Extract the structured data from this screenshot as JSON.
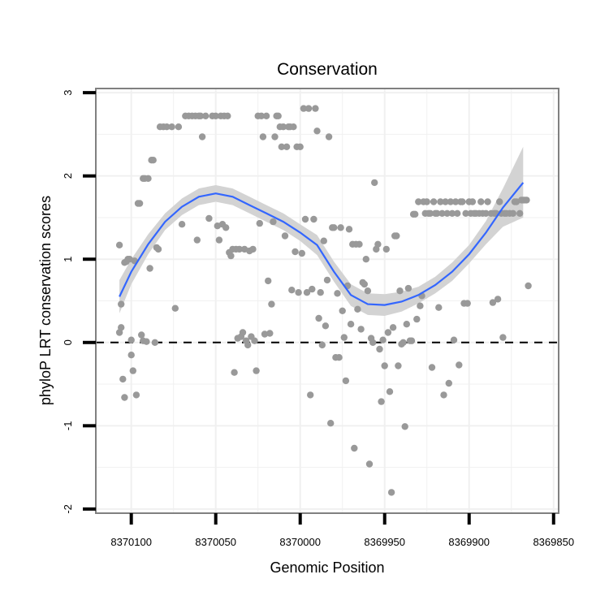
{
  "chart_data": {
    "type": "scatter",
    "title": "Conservation",
    "xlabel": "Genomic Position",
    "ylabel": "phyloP LRT conservation scores",
    "x_reversed": true,
    "xlim": [
      8370121,
      8369847
    ],
    "ylim": [
      -2.05,
      3.05
    ],
    "x_ticks": [
      8370100,
      8370050,
      8370000,
      8369950,
      8369900,
      8369850
    ],
    "x_tick_labels": [
      "8370100",
      "8370050",
      "8370000",
      "8369950",
      "8369900",
      "8369850"
    ],
    "y_ticks": [
      -2,
      -1,
      0,
      1,
      2,
      3
    ],
    "y_tick_labels": [
      "-2",
      "-1",
      "0",
      "1",
      "2",
      "3"
    ],
    "reference_line": {
      "y": 0,
      "style": "dashed"
    },
    "point_color": "#999999",
    "line_color": "#3366ff",
    "band_color": "#d3d3d3",
    "axis_color": "#808080",
    "grid_color": "#f0f0f0",
    "points": [
      [
        8370107,
        1.17
      ],
      [
        8370106,
        0.46
      ],
      [
        8370107,
        0.12
      ],
      [
        8370106,
        0.18
      ],
      [
        8370105,
        -0.44
      ],
      [
        8370104,
        0.96
      ],
      [
        8370103,
        0.97
      ],
      [
        8370104,
        -0.66
      ],
      [
        8370102,
        1.0
      ],
      [
        8370101,
        1.0
      ],
      [
        8370100,
        0.03
      ],
      [
        8370100,
        -0.15
      ],
      [
        8370099,
        -0.34
      ],
      [
        8370098,
        0.98
      ],
      [
        8370097,
        -0.63
      ],
      [
        8370096,
        1.67
      ],
      [
        8370095,
        1.67
      ],
      [
        8370094,
        0.09
      ],
      [
        8370093,
        0.02
      ],
      [
        8370093,
        1.97
      ],
      [
        8370092,
        1.97
      ],
      [
        8370091,
        0.01
      ],
      [
        8370090,
        1.97
      ],
      [
        8370089,
        0.89
      ],
      [
        8370088,
        2.19
      ],
      [
        8370087,
        2.19
      ],
      [
        8370086,
        0.0
      ],
      [
        8370085,
        1.14
      ],
      [
        8370084,
        1.12
      ],
      [
        8370083,
        2.59
      ],
      [
        8370081,
        2.59
      ],
      [
        8370079,
        2.59
      ],
      [
        8370076,
        2.59
      ],
      [
        8370074,
        0.41
      ],
      [
        8370072,
        2.59
      ],
      [
        8370070,
        1.42
      ],
      [
        8370068,
        2.72
      ],
      [
        8370066,
        2.72
      ],
      [
        8370064,
        2.72
      ],
      [
        8370062,
        2.72
      ],
      [
        8370061,
        1.23
      ],
      [
        8370060,
        2.72
      ],
      [
        8370059,
        2.72
      ],
      [
        8370058,
        2.47
      ],
      [
        8370056,
        2.72
      ],
      [
        8370054,
        1.49
      ],
      [
        8370052,
        2.72
      ],
      [
        8370050,
        2.72
      ],
      [
        8370049,
        1.4
      ],
      [
        8370048,
        1.23
      ],
      [
        8370047,
        2.72
      ],
      [
        8370046,
        1.42
      ],
      [
        8370045,
        2.72
      ],
      [
        8370044,
        1.38
      ],
      [
        8370043,
        2.72
      ],
      [
        8370042,
        1.08
      ],
      [
        8370041,
        1.04
      ],
      [
        8370040,
        1.12
      ],
      [
        8370039,
        -0.36
      ],
      [
        8370038,
        1.12
      ],
      [
        8370037,
        0.05
      ],
      [
        8370036,
        1.12
      ],
      [
        8370035,
        0.07
      ],
      [
        8370034,
        0.12
      ],
      [
        8370033,
        1.12
      ],
      [
        8370032,
        0.02
      ],
      [
        8370031,
        -0.03
      ],
      [
        8370030,
        1.1
      ],
      [
        8370029,
        0.07
      ],
      [
        8370028,
        1.12
      ],
      [
        8370027,
        0.02
      ],
      [
        8370026,
        -0.34
      ],
      [
        8370025,
        2.72
      ],
      [
        8370024,
        1.43
      ],
      [
        8370023,
        2.72
      ],
      [
        8370022,
        2.47
      ],
      [
        8370021,
        0.1
      ],
      [
        8370020,
        2.72
      ],
      [
        8370019,
        0.74
      ],
      [
        8370018,
        0.11
      ],
      [
        8370017,
        0.46
      ],
      [
        8370016,
        1.45
      ],
      [
        8370015,
        2.47
      ],
      [
        8370014,
        2.72
      ],
      [
        8370013,
        2.72
      ],
      [
        8370012,
        2.59
      ],
      [
        8370011,
        2.35
      ],
      [
        8370010,
        2.59
      ],
      [
        8370009,
        1.28
      ],
      [
        8370008,
        2.35
      ],
      [
        8370007,
        2.59
      ],
      [
        8370006,
        2.59
      ],
      [
        8370005,
        0.63
      ],
      [
        8370004,
        2.59
      ],
      [
        8370003,
        1.09
      ],
      [
        8370002,
        2.35
      ],
      [
        8370001,
        0.6
      ],
      [
        8370000,
        2.35
      ],
      [
        8369999,
        1.07
      ],
      [
        8369998,
        2.81
      ],
      [
        8369997,
        1.48
      ],
      [
        8369996,
        0.6
      ],
      [
        8369995,
        2.81
      ],
      [
        8369994,
        -0.63
      ],
      [
        8369993,
        0.64
      ],
      [
        8369992,
        1.48
      ],
      [
        8369991,
        2.81
      ],
      [
        8369990,
        2.54
      ],
      [
        8369989,
        0.29
      ],
      [
        8369988,
        0.6
      ],
      [
        8369987,
        -0.03
      ],
      [
        8369986,
        1.22
      ],
      [
        8369985,
        0.2
      ],
      [
        8369984,
        0.75
      ],
      [
        8369983,
        2.47
      ],
      [
        8369982,
        -0.97
      ],
      [
        8369981,
        1.38
      ],
      [
        8369980,
        1.38
      ],
      [
        8369979,
        -0.18
      ],
      [
        8369978,
        0.59
      ],
      [
        8369977,
        -0.18
      ],
      [
        8369976,
        1.38
      ],
      [
        8369975,
        0.38
      ],
      [
        8369974,
        0.06
      ],
      [
        8369973,
        -0.46
      ],
      [
        8369972,
        0.68
      ],
      [
        8369971,
        1.36
      ],
      [
        8369970,
        0.22
      ],
      [
        8369969,
        1.18
      ],
      [
        8369968,
        -1.27
      ],
      [
        8369967,
        1.18
      ],
      [
        8369966,
        0.4
      ],
      [
        8369965,
        1.18
      ],
      [
        8369964,
        0.16
      ],
      [
        8369963,
        0.72
      ],
      [
        8369962,
        0.7
      ],
      [
        8369961,
        1.0
      ],
      [
        8369960,
        0.62
      ],
      [
        8369959,
        -1.46
      ],
      [
        8369958,
        0.05
      ],
      [
        8369957,
        0.0
      ],
      [
        8369956,
        1.92
      ],
      [
        8369955,
        1.12
      ],
      [
        8369954,
        1.18
      ],
      [
        8369953,
        -0.08
      ],
      [
        8369952,
        -0.71
      ],
      [
        8369951,
        0.03
      ],
      [
        8369950,
        -0.28
      ],
      [
        8369949,
        1.12
      ],
      [
        8369948,
        0.12
      ],
      [
        8369947,
        -0.59
      ],
      [
        8369946,
        -1.8
      ],
      [
        8369945,
        0.18
      ],
      [
        8369944,
        1.28
      ],
      [
        8369943,
        1.28
      ],
      [
        8369942,
        -0.28
      ],
      [
        8369941,
        0.62
      ],
      [
        8369940,
        -0.02
      ],
      [
        8369939,
        0.0
      ],
      [
        8369938,
        -1.01
      ],
      [
        8369937,
        0.22
      ],
      [
        8369936,
        0.65
      ],
      [
        8369935,
        0.02
      ],
      [
        8369934,
        0.02
      ],
      [
        8369933,
        1.54
      ],
      [
        8369932,
        1.54
      ],
      [
        8369931,
        0.28
      ],
      [
        8369930,
        1.69
      ],
      [
        8369929,
        0.44
      ],
      [
        8369928,
        0.56
      ],
      [
        8369927,
        1.69
      ],
      [
        8369926,
        1.55
      ],
      [
        8369925,
        1.69
      ],
      [
        8369924,
        1.55
      ],
      [
        8369923,
        1.55
      ],
      [
        8369922,
        -0.3
      ],
      [
        8369921,
        1.69
      ],
      [
        8369920,
        1.55
      ],
      [
        8369919,
        1.55
      ],
      [
        8369918,
        0.42
      ],
      [
        8369917,
        1.69
      ],
      [
        8369916,
        1.55
      ],
      [
        8369915,
        -0.63
      ],
      [
        8369914,
        1.69
      ],
      [
        8369913,
        1.55
      ],
      [
        8369912,
        -0.49
      ],
      [
        8369911,
        1.69
      ],
      [
        8369910,
        1.55
      ],
      [
        8369909,
        0.03
      ],
      [
        8369908,
        1.69
      ],
      [
        8369907,
        1.55
      ],
      [
        8369906,
        -0.27
      ],
      [
        8369905,
        1.69
      ],
      [
        8369904,
        1.69
      ],
      [
        8369903,
        0.47
      ],
      [
        8369902,
        1.55
      ],
      [
        8369901,
        0.47
      ],
      [
        8369900,
        1.69
      ],
      [
        8369899,
        1.55
      ],
      [
        8369898,
        1.69
      ],
      [
        8369897,
        1.55
      ],
      [
        8369896,
        1.55
      ],
      [
        8369894,
        1.55
      ],
      [
        8369893,
        1.69
      ],
      [
        8369892,
        1.55
      ],
      [
        8369890,
        1.55
      ],
      [
        8369889,
        1.69
      ],
      [
        8369887,
        1.55
      ],
      [
        8369886,
        0.48
      ],
      [
        8369885,
        1.55
      ],
      [
        8369884,
        1.55
      ],
      [
        8369883,
        0.52
      ],
      [
        8369882,
        1.69
      ],
      [
        8369881,
        1.55
      ],
      [
        8369880,
        0.06
      ],
      [
        8369879,
        1.55
      ],
      [
        8369878,
        1.55
      ],
      [
        8369876,
        1.55
      ],
      [
        8369874,
        1.55
      ],
      [
        8369873,
        1.69
      ],
      [
        8369872,
        1.69
      ],
      [
        8369870,
        1.55
      ],
      [
        8369869,
        1.71
      ],
      [
        8369868,
        1.71
      ],
      [
        8369867,
        1.71
      ],
      [
        8369866,
        1.71
      ],
      [
        8369865,
        0.68
      ]
    ],
    "smooth_line": [
      [
        8370107,
        0.55
      ],
      [
        8370100,
        0.85
      ],
      [
        8370090,
        1.18
      ],
      [
        8370080,
        1.45
      ],
      [
        8370070,
        1.63
      ],
      [
        8370060,
        1.75
      ],
      [
        8370050,
        1.79
      ],
      [
        8370040,
        1.75
      ],
      [
        8370030,
        1.65
      ],
      [
        8370020,
        1.55
      ],
      [
        8370010,
        1.45
      ],
      [
        8370000,
        1.32
      ],
      [
        8369990,
        1.17
      ],
      [
        8369980,
        0.85
      ],
      [
        8369970,
        0.57
      ],
      [
        8369960,
        0.46
      ],
      [
        8369950,
        0.45
      ],
      [
        8369940,
        0.49
      ],
      [
        8369930,
        0.57
      ],
      [
        8369920,
        0.69
      ],
      [
        8369910,
        0.85
      ],
      [
        8369900,
        1.06
      ],
      [
        8369890,
        1.32
      ],
      [
        8369880,
        1.62
      ],
      [
        8369868,
        1.92
      ]
    ],
    "smooth_upper": [
      [
        8370107,
        0.75
      ],
      [
        8370100,
        1.0
      ],
      [
        8370090,
        1.3
      ],
      [
        8370080,
        1.55
      ],
      [
        8370070,
        1.73
      ],
      [
        8370060,
        1.85
      ],
      [
        8370050,
        1.89
      ],
      [
        8370040,
        1.85
      ],
      [
        8370030,
        1.75
      ],
      [
        8370020,
        1.65
      ],
      [
        8370010,
        1.55
      ],
      [
        8370000,
        1.42
      ],
      [
        8369990,
        1.29
      ],
      [
        8369980,
        0.97
      ],
      [
        8369970,
        0.7
      ],
      [
        8369960,
        0.59
      ],
      [
        8369950,
        0.58
      ],
      [
        8369940,
        0.61
      ],
      [
        8369930,
        0.67
      ],
      [
        8369920,
        0.79
      ],
      [
        8369910,
        0.96
      ],
      [
        8369900,
        1.17
      ],
      [
        8369890,
        1.46
      ],
      [
        8369880,
        1.85
      ],
      [
        8369868,
        2.35
      ]
    ],
    "smooth_lower": [
      [
        8370107,
        0.35
      ],
      [
        8370100,
        0.7
      ],
      [
        8370090,
        1.06
      ],
      [
        8370080,
        1.35
      ],
      [
        8370070,
        1.53
      ],
      [
        8370060,
        1.65
      ],
      [
        8370050,
        1.69
      ],
      [
        8370040,
        1.65
      ],
      [
        8370030,
        1.55
      ],
      [
        8370020,
        1.45
      ],
      [
        8370010,
        1.35
      ],
      [
        8370000,
        1.22
      ],
      [
        8369990,
        1.05
      ],
      [
        8369980,
        0.73
      ],
      [
        8369970,
        0.44
      ],
      [
        8369960,
        0.33
      ],
      [
        8369950,
        0.32
      ],
      [
        8369940,
        0.37
      ],
      [
        8369930,
        0.47
      ],
      [
        8369920,
        0.59
      ],
      [
        8369910,
        0.74
      ],
      [
        8369900,
        0.95
      ],
      [
        8369890,
        1.18
      ],
      [
        8369880,
        1.39
      ],
      [
        8369868,
        1.5
      ]
    ]
  }
}
